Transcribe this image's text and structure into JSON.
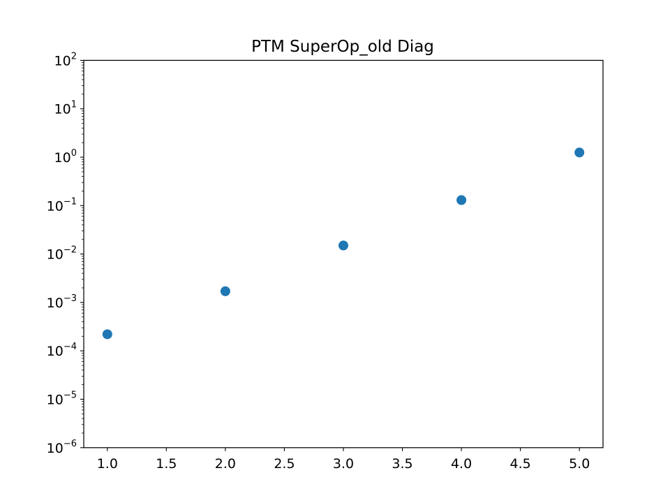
{
  "chart_data": {
    "type": "scatter",
    "title": "PTM SuperOp_old Diag",
    "xlabel": "",
    "ylabel": "",
    "x": [
      1.0,
      2.0,
      3.0,
      4.0,
      5.0
    ],
    "y": [
      0.00022,
      0.0017,
      0.015,
      0.13,
      1.25
    ],
    "xlim": [
      0.8,
      5.2
    ],
    "ylim": [
      1e-06,
      100
    ],
    "yscale": "log",
    "x_tick_labels": [
      "1.0",
      "1.5",
      "2.0",
      "2.5",
      "3.0",
      "3.5",
      "4.0",
      "4.5",
      "5.0"
    ],
    "x_ticks": [
      1.0,
      1.5,
      2.0,
      2.5,
      3.0,
      3.5,
      4.0,
      4.5,
      5.0
    ],
    "y_tick_exponents": [
      -6,
      -5,
      -4,
      -3,
      -2,
      -1,
      0,
      1,
      2
    ],
    "y_tick_base": "10",
    "grid": false,
    "marker_color": "#1f77b4"
  }
}
